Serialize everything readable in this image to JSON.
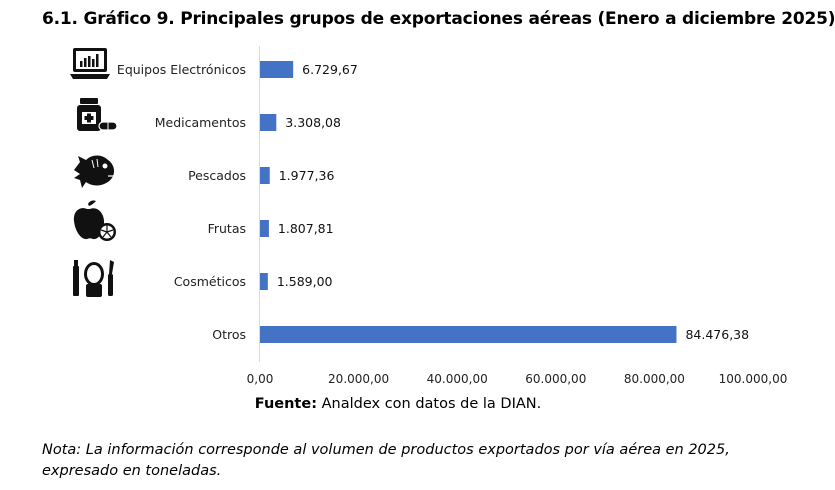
{
  "header": {
    "title": "6.1. Gráfico 9. Principales grupos de exportaciones aéreas (Enero a diciembre 2025)"
  },
  "chart_data": {
    "type": "bar",
    "orientation": "horizontal",
    "title": "6.1. Gráfico 9. Principales grupos de exportaciones aéreas (Enero a diciembre 2025)",
    "categories": [
      "Equipos Electrónicos",
      "Medicamentos",
      "Pescados",
      "Frutas",
      "Cosméticos",
      "Otros"
    ],
    "values": [
      6729.67,
      3308.08,
      1977.36,
      1807.81,
      1589.0,
      84476.38
    ],
    "value_labels": [
      "6.729,67",
      "3.308,08",
      "1.977,36",
      "1.807,81",
      "1.589,00",
      "84.476,38"
    ],
    "icons": [
      "laptop-icon",
      "medicine-icon",
      "fish-icon",
      "fruit-icon",
      "cosmetics-icon",
      null
    ],
    "xlim": [
      0,
      100000
    ],
    "xticks": [
      0,
      20000,
      40000,
      60000,
      80000,
      100000
    ],
    "xtick_labels": [
      "0,00",
      "20.000,00",
      "40.000,00",
      "60.000,00",
      "80.000,00",
      "100.000,00"
    ],
    "xlabel": "",
    "ylabel": "",
    "grid": false,
    "bar_color": "#4472c4"
  },
  "source": {
    "label": "Fuente:",
    "text": " Analdex con datos de la DIAN."
  },
  "note": {
    "text": "Nota: La información corresponde al volumen de productos exportados por vía aérea en 2025, expresado en toneladas."
  }
}
